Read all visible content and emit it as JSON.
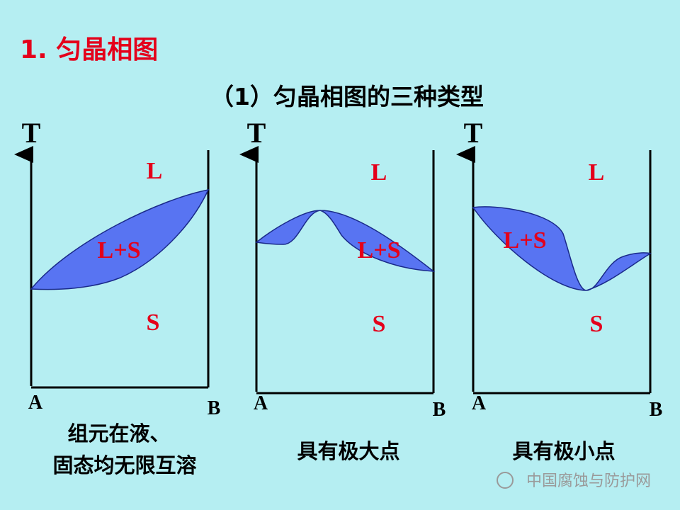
{
  "title": "1. 匀晶相图",
  "subtitle": "（1）匀晶相图的三种类型",
  "diagrams": [
    {
      "axis_label": "T",
      "regions": [
        "L",
        "L+S",
        "S"
      ],
      "left": "A",
      "right": "B",
      "caption": [
        "组元在液、",
        "固态均无限互溶"
      ]
    },
    {
      "axis_label": "T",
      "regions": [
        "L",
        "L+S",
        "S"
      ],
      "left": "A",
      "right": "B",
      "caption": [
        "具有极大点"
      ]
    },
    {
      "axis_label": "T",
      "regions": [
        "L",
        "L+S",
        "S"
      ],
      "left": "A",
      "right": "B",
      "caption": [
        "具有极小点"
      ]
    }
  ],
  "watermark": "中国腐蚀与防护网"
}
